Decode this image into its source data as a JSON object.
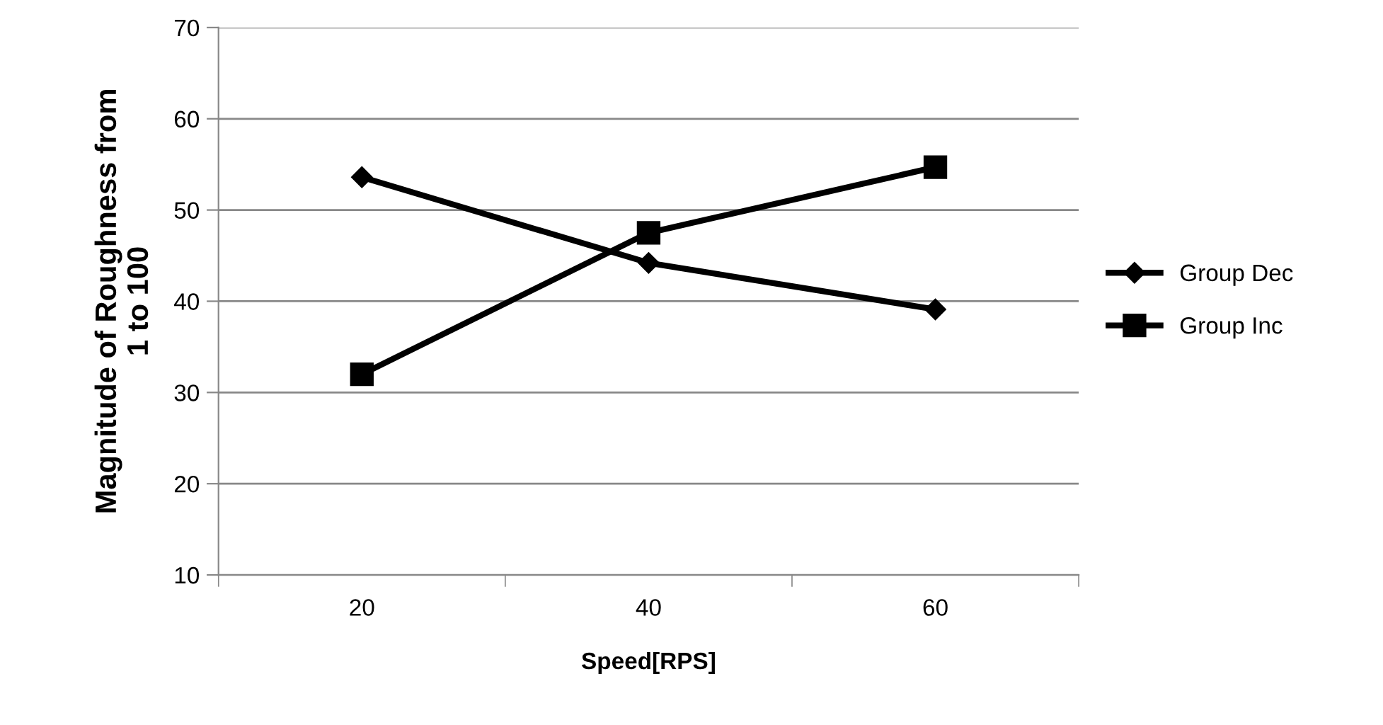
{
  "chart_data": {
    "type": "line",
    "xlabel": "Speed[RPS]",
    "ylabel": "Magnitude of Roughness from\n1 to 100",
    "categories": [
      "20",
      "40",
      "60"
    ],
    "series": [
      {
        "name": "Group Dec",
        "color": "#000000",
        "values": [
          53.6,
          44.2,
          39.1
        ],
        "marker": "diamond"
      },
      {
        "name": "Group Inc",
        "color": "#000000",
        "values": [
          32,
          47.5,
          54.7
        ],
        "marker": "square"
      }
    ],
    "ylim": [
      10,
      70
    ],
    "yticks": [
      10,
      20,
      30,
      40,
      50,
      60,
      70
    ],
    "grid": "y",
    "legend": "right",
    "line_style": "solid"
  }
}
